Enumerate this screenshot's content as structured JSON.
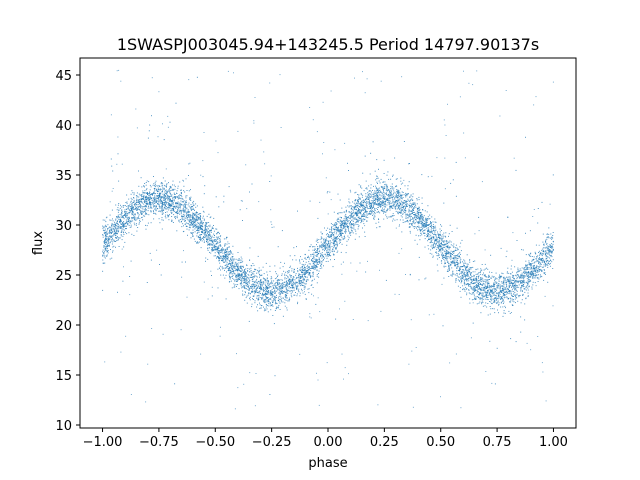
{
  "chart_data": {
    "type": "scatter",
    "title": "1SWASPJ003045.94+143245.5 Period 14797.90137s",
    "xlabel": "phase",
    "ylabel": "flux",
    "xlim": [
      -1.1,
      1.1
    ],
    "ylim": [
      9.7,
      46.7
    ],
    "x_ticks": [
      -1.0,
      -0.75,
      -0.5,
      -0.25,
      0.0,
      0.25,
      0.5,
      0.75,
      1.0
    ],
    "x_tick_labels": [
      "−1.00",
      "−0.75",
      "−0.50",
      "−0.25",
      "0.00",
      "0.25",
      "0.50",
      "0.75",
      "1.00"
    ],
    "y_ticks": [
      10,
      15,
      20,
      25,
      30,
      35,
      40,
      45
    ],
    "y_tick_labels": [
      "10",
      "15",
      "20",
      "25",
      "30",
      "35",
      "40",
      "45"
    ],
    "grid": false,
    "point_color": "#1f77b4",
    "curve_model": {
      "description": "sinusoidal light curve, repeated over two phase cycles",
      "mean_flux": 28.0,
      "amplitude": 4.6,
      "max_phase": 0.25,
      "min_phase": -0.25,
      "scatter_sigma": 0.9
    },
    "outlier_range": [
      11.5,
      45.5
    ]
  }
}
